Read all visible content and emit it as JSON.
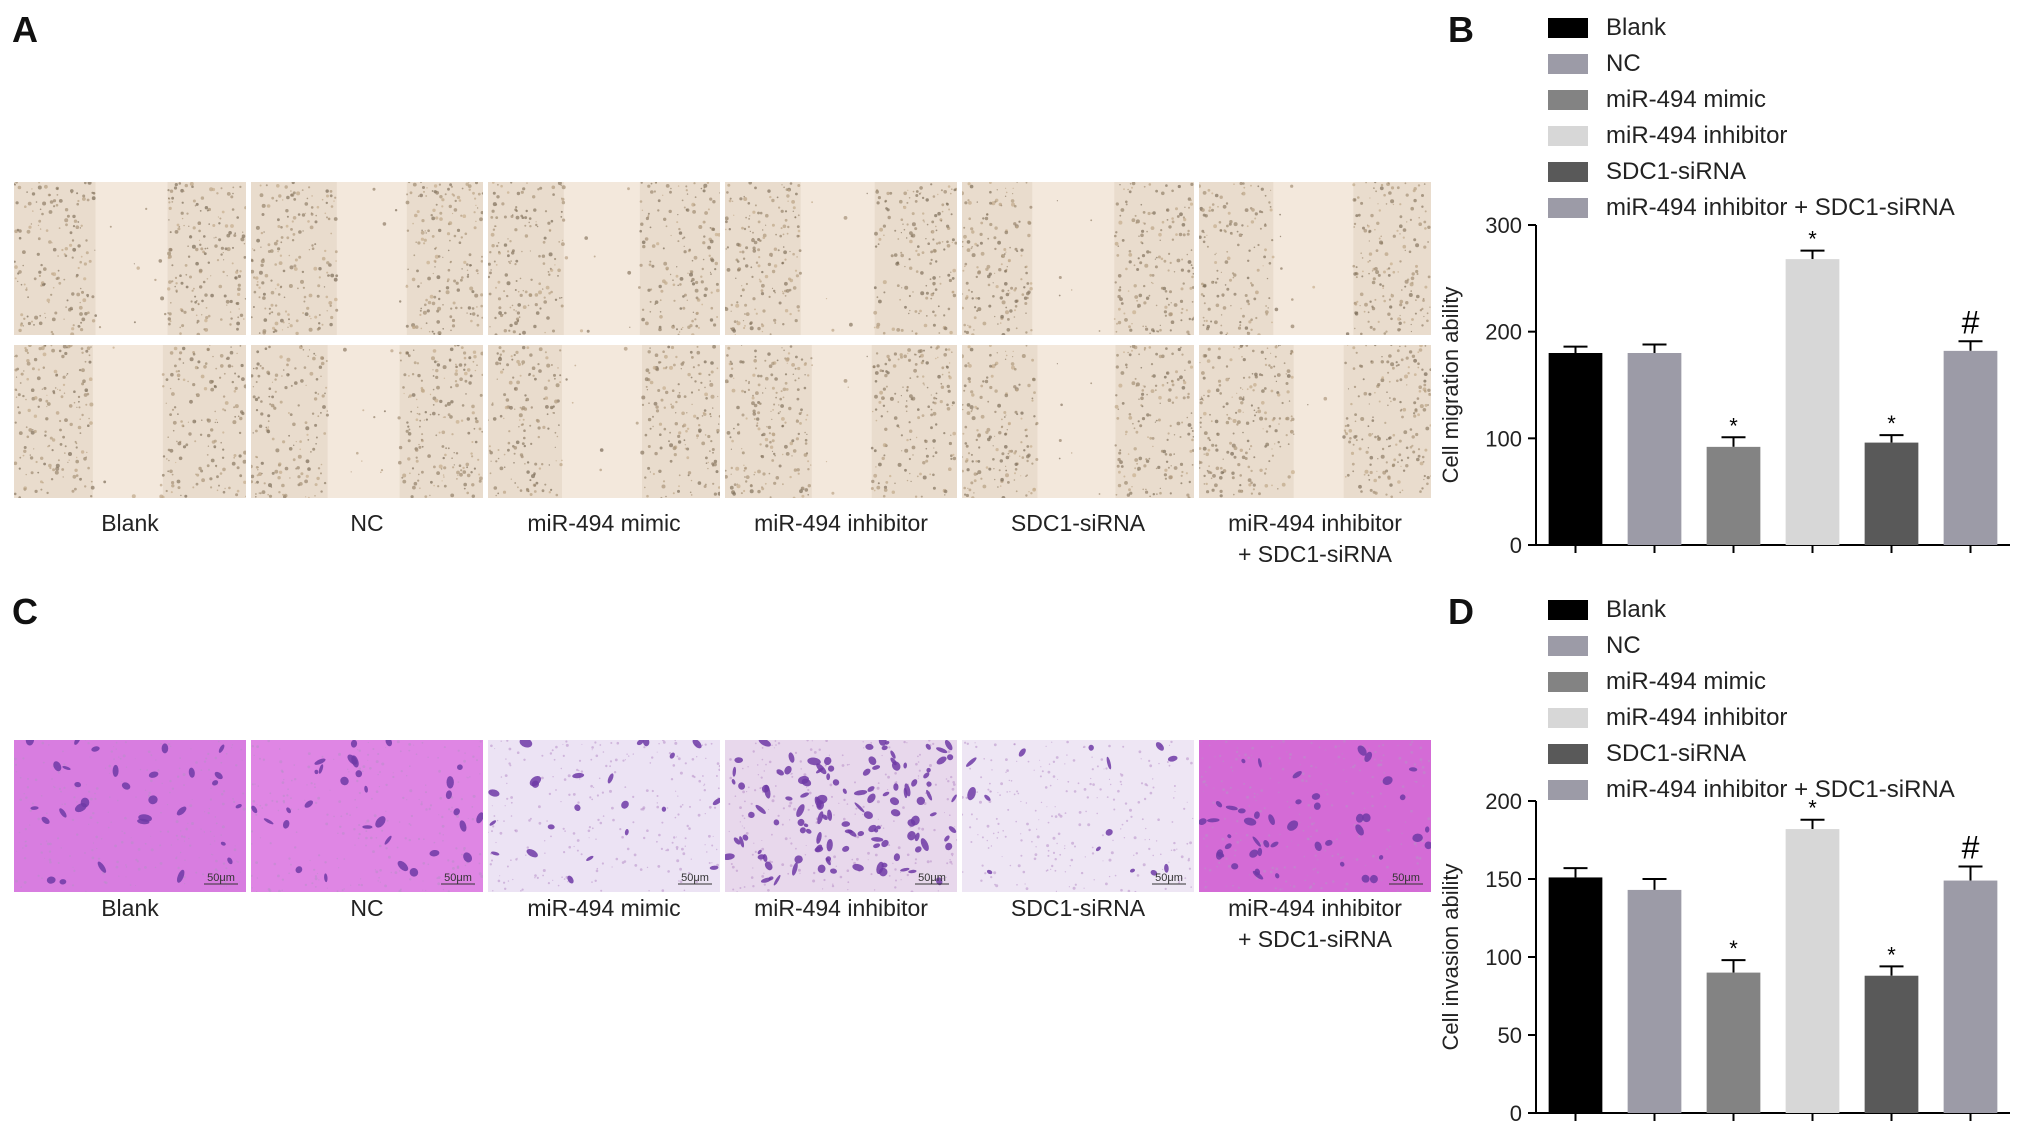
{
  "panels": {
    "a": "A",
    "b": "B",
    "c": "C",
    "d": "D"
  },
  "micrographs": {
    "group_captions": [
      [
        "Blank"
      ],
      [
        "NC"
      ],
      [
        "miR-494 mimic"
      ],
      [
        "miR-494 inhibitor"
      ],
      [
        "SDC1-siRNA"
      ],
      [
        "miR-494 inhibitor",
        "+ SDC1-siRNA"
      ]
    ],
    "scale_bar_label": "50μm"
  },
  "legend": {
    "items": [
      {
        "label": "Blank",
        "color": "#000000"
      },
      {
        "label": "NC",
        "color": "#9c9ba7"
      },
      {
        "label": "miR-494 mimic",
        "color": "#838383"
      },
      {
        "label": "miR-494 inhibitor",
        "color": "#d7d7d7"
      },
      {
        "label": "SDC1-siRNA",
        "color": "#595959"
      },
      {
        "label": "miR-494 inhibitor + SDC1-siRNA",
        "color": "#9c9ba7"
      }
    ]
  },
  "chart_data": [
    {
      "type": "bar",
      "panel": "B",
      "categories": [
        "Blank",
        "NC",
        "miR-494 mimic",
        "miR-494 inhibitor",
        "SDC1-siRNA",
        "miR-494 inhibitor + SDC1-siRNA"
      ],
      "values": [
        180,
        180,
        92,
        268,
        96,
        182
      ],
      "errors": [
        6,
        8,
        9,
        8,
        7,
        9
      ],
      "annotations": [
        "",
        "",
        "*",
        "*",
        "*",
        "#"
      ],
      "colors": [
        "#000000",
        "#9c9ba7",
        "#838383",
        "#d7d7d7",
        "#595959",
        "#9c9ba7"
      ],
      "ylabel": "Cell migration ability",
      "ylim": [
        0,
        300
      ],
      "yticks": [
        0,
        100,
        200,
        300
      ],
      "grid": false,
      "legend": "top"
    },
    {
      "type": "bar",
      "panel": "D",
      "categories": [
        "Blank",
        "NC",
        "miR-494 mimic",
        "miR-494 inhibitor",
        "SDC1-siRNA",
        "miR-494 inhibitor + SDC1-siRNA"
      ],
      "values": [
        151,
        143,
        90,
        182,
        88,
        149
      ],
      "errors": [
        6,
        7,
        8,
        6,
        6,
        9
      ],
      "annotations": [
        "",
        "",
        "*",
        "*",
        "*",
        "#"
      ],
      "colors": [
        "#000000",
        "#9c9ba7",
        "#838383",
        "#d7d7d7",
        "#595959",
        "#9c9ba7"
      ],
      "ylabel": "Cell invasion ability",
      "ylim": [
        0,
        200
      ],
      "yticks": [
        0,
        50,
        100,
        150,
        200
      ],
      "grid": false,
      "legend": "top"
    }
  ]
}
